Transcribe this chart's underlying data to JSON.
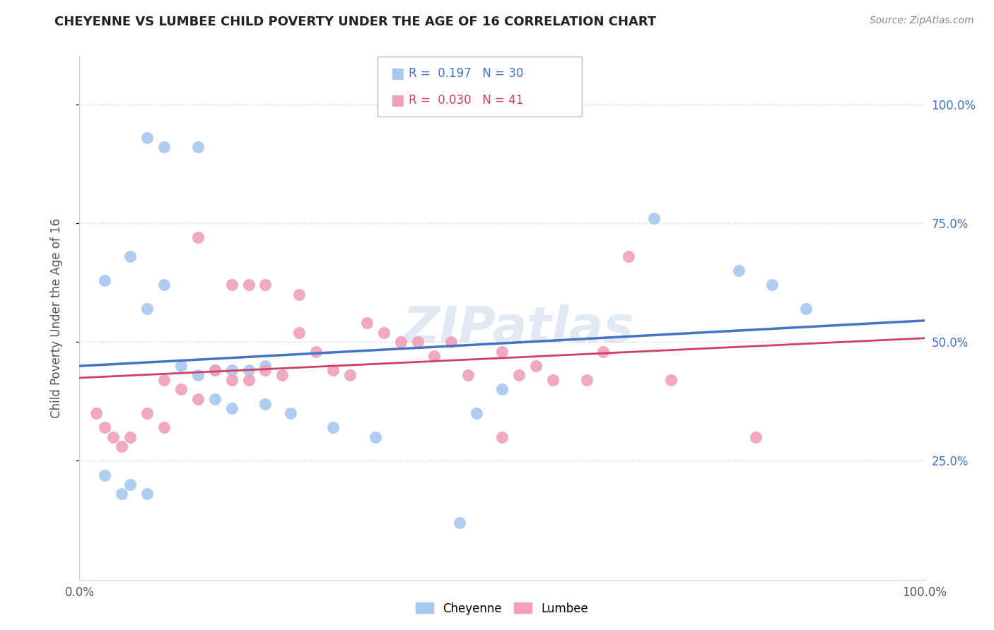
{
  "title": "CHEYENNE VS LUMBEE CHILD POVERTY UNDER THE AGE OF 16 CORRELATION CHART",
  "source": "Source: ZipAtlas.com",
  "ylabel": "Child Poverty Under the Age of 16",
  "watermark": "ZIPatlas",
  "legend1_label": "Cheyenne",
  "legend2_label": "Lumbee",
  "R1": 0.197,
  "N1": 30,
  "R2": 0.03,
  "N2": 41,
  "cheyenne_color": "#a8c8f0",
  "lumbee_color": "#f0a0b8",
  "cheyenne_line_color": "#4472c4",
  "lumbee_line_color": "#d04060",
  "cheyenne_x": [
    8,
    10,
    14,
    3,
    6,
    8,
    10,
    12,
    14,
    16,
    18,
    20,
    22,
    16,
    18,
    22,
    25,
    30,
    35,
    68,
    78,
    82,
    86,
    47,
    50,
    3,
    5,
    6,
    8,
    45
  ],
  "cheyenne_y": [
    93,
    91,
    91,
    63,
    68,
    57,
    62,
    45,
    43,
    44,
    44,
    44,
    45,
    38,
    36,
    37,
    35,
    32,
    30,
    76,
    65,
    62,
    57,
    35,
    40,
    22,
    18,
    20,
    18,
    12
  ],
  "lumbee_x": [
    2,
    3,
    4,
    5,
    6,
    8,
    10,
    10,
    12,
    14,
    16,
    18,
    20,
    22,
    24,
    26,
    28,
    30,
    32,
    34,
    36,
    38,
    40,
    42,
    44,
    46,
    50,
    52,
    54,
    56,
    60,
    62,
    65,
    70,
    80,
    14,
    18,
    20,
    22,
    26,
    50
  ],
  "lumbee_y": [
    35,
    32,
    30,
    28,
    30,
    35,
    32,
    42,
    40,
    38,
    44,
    42,
    42,
    44,
    43,
    52,
    48,
    44,
    43,
    54,
    52,
    50,
    50,
    47,
    50,
    43,
    48,
    43,
    45,
    42,
    42,
    48,
    68,
    42,
    30,
    72,
    62,
    62,
    62,
    60,
    30
  ],
  "ytick_labels": [
    "25.0%",
    "50.0%",
    "75.0%",
    "100.0%"
  ],
  "ytick_values": [
    25,
    50,
    75,
    100
  ],
  "xlim": [
    0,
    100
  ],
  "ylim": [
    0,
    110
  ],
  "grid_color": "#d0d0d0",
  "bg_color": "#ffffff",
  "title_fontsize": 13,
  "source_fontsize": 10,
  "axis_label_color": "#555555",
  "tick_color": "#555555",
  "right_tick_color": "#4472c4"
}
